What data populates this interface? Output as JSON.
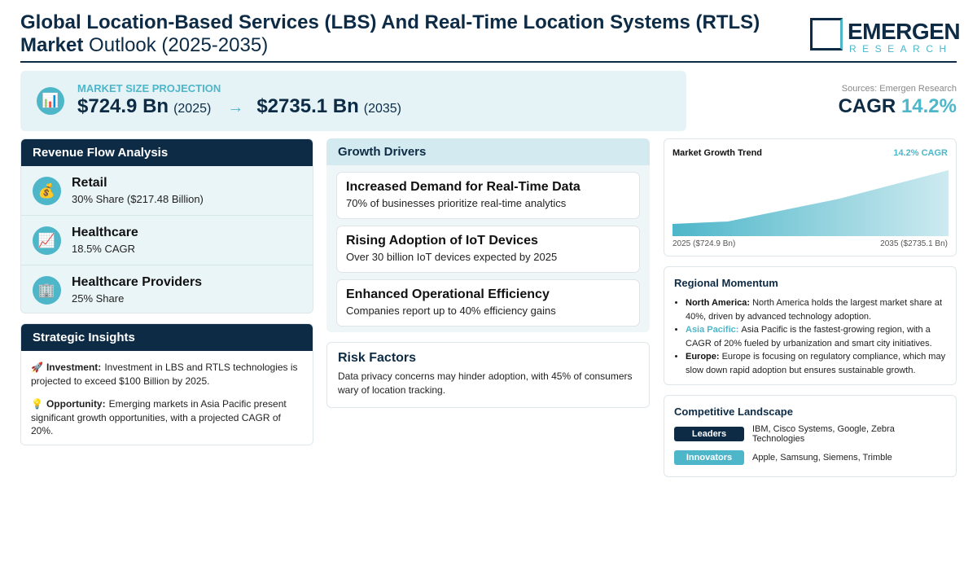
{
  "header": {
    "title_bold": "Global Location-Based Services (LBS) And Real-Time Location Systems (RTLS) Market",
    "title_rest": "Outlook (2025-2035)",
    "logo": {
      "name": "EMERGEN",
      "sub": "RESEARCH"
    }
  },
  "projection": {
    "icon": "📊",
    "label": "MARKET SIZE PROJECTION",
    "start_value": "$724.9 Bn",
    "start_year": "(2025)",
    "arrow": "→",
    "end_value": "$2735.1 Bn",
    "end_year": "(2035)"
  },
  "summary": {
    "source": "Sources: Emergen Research",
    "cagr_label": "CAGR",
    "cagr_value": "14.2%"
  },
  "revenue_flow": {
    "title": "Revenue Flow Analysis",
    "items": [
      {
        "icon": "💰",
        "name": "Retail",
        "detail": "30% Share ($217.48 Billion)"
      },
      {
        "icon": "📈",
        "name": "Healthcare",
        "detail": "18.5% CAGR"
      },
      {
        "icon": "🏢",
        "name": "Healthcare Providers",
        "detail": "25% Share"
      }
    ]
  },
  "strategic_insights": {
    "title": "Strategic Insights",
    "items": [
      {
        "icon": "🚀",
        "label": "Investment:",
        "text": "Investment in LBS and RTLS technologies is projected to exceed $100 Billion by 2025."
      },
      {
        "icon": "💡",
        "label": "Opportunity:",
        "text": "Emerging markets in Asia Pacific present significant growth opportunities, with a projected CAGR of 20%."
      }
    ]
  },
  "growth_drivers": {
    "title": "Growth Drivers",
    "items": [
      {
        "title": "Increased Demand for Real-Time Data",
        "text": "70% of businesses prioritize real-time analytics"
      },
      {
        "title": "Rising Adoption of IoT Devices",
        "text": "Over 30 billion IoT devices expected by 2025"
      },
      {
        "title": "Enhanced Operational Efficiency",
        "text": "Companies report up to 40% efficiency gains"
      }
    ]
  },
  "risk_factors": {
    "title": "Risk Factors",
    "text": "Data privacy concerns may hinder adoption, with 45% of consumers wary of location tracking."
  },
  "market_trend": {
    "title": "Market Growth Trend",
    "badge": "14.2% CAGR",
    "start_label": "2025 ($724.9 Bn)",
    "end_label": "2035 ($2735.1 Bn)"
  },
  "regional_momentum": {
    "title": "Regional Momentum",
    "items": [
      {
        "region": "North America:",
        "text": "North America holds the largest market share at 40%, driven by advanced technology adoption."
      },
      {
        "region": "Asia Pacific:",
        "text": "Asia Pacific is the fastest-growing region, with a CAGR of 20% fueled by urbanization and smart city initiatives."
      },
      {
        "region": "Europe:",
        "text": "Europe is focusing on regulatory compliance, which may slow down rapid adoption but ensures sustainable growth."
      }
    ]
  },
  "competitive_landscape": {
    "title": "Competitive Landscape",
    "groups": [
      {
        "label": "Leaders",
        "companies": "IBM, Cisco Systems, Google, Zebra Technologies"
      },
      {
        "label": "Innovators",
        "companies": "Apple, Samsung, Siemens, Trimble"
      }
    ]
  }
}
